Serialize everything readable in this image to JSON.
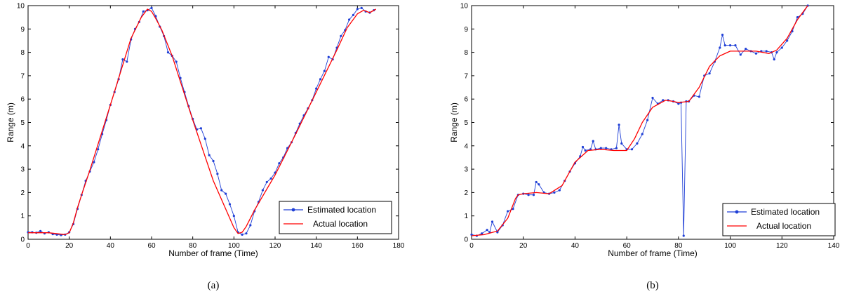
{
  "chart_data": [
    {
      "type": "line",
      "caption": "(a)",
      "xlabel": "Number of frame (Time)",
      "ylabel": "Range (m)",
      "xlim": [
        0,
        180
      ],
      "ylim": [
        0,
        10
      ],
      "xticks": [
        "0",
        "20",
        "40",
        "60",
        "80",
        "100",
        "120",
        "140",
        "160",
        "180"
      ],
      "yticks": [
        "0",
        "1",
        "2",
        "3",
        "4",
        "5",
        "6",
        "7",
        "8",
        "9",
        "10"
      ],
      "grid": false,
      "legend_position": "bottom-right",
      "series": [
        {
          "name": "Estimated location",
          "color": "#1f3fd6",
          "marker": "point",
          "x": [
            0,
            2,
            4,
            6,
            8,
            10,
            12,
            14,
            16,
            18,
            20,
            22,
            24,
            26,
            28,
            30,
            32,
            34,
            36,
            38,
            40,
            42,
            44,
            46,
            48,
            50,
            52,
            54,
            56,
            58,
            60,
            62,
            64,
            66,
            68,
            70,
            72,
            74,
            76,
            78,
            80,
            82,
            84,
            86,
            88,
            90,
            92,
            94,
            96,
            98,
            100,
            102,
            104,
            106,
            108,
            110,
            112,
            114,
            116,
            118,
            120,
            122,
            124,
            126,
            128,
            130,
            132,
            134,
            136,
            138,
            140,
            142,
            144,
            146,
            148,
            150,
            152,
            154,
            156,
            158,
            160,
            162,
            164,
            166,
            168
          ],
          "y": [
            0.3,
            0.3,
            0.28,
            0.35,
            0.25,
            0.3,
            0.22,
            0.2,
            0.18,
            0.2,
            0.3,
            0.65,
            1.3,
            1.9,
            2.5,
            2.9,
            3.3,
            3.85,
            4.5,
            5.1,
            5.75,
            6.3,
            6.85,
            7.7,
            7.6,
            8.55,
            9.0,
            9.3,
            9.75,
            9.8,
            9.9,
            9.55,
            9.1,
            8.7,
            8.0,
            7.85,
            7.6,
            6.9,
            6.3,
            5.7,
            5.15,
            4.7,
            4.75,
            4.3,
            3.6,
            3.35,
            2.8,
            2.1,
            1.95,
            1.5,
            1.0,
            0.3,
            0.2,
            0.25,
            0.6,
            1.2,
            1.6,
            2.1,
            2.45,
            2.6,
            2.85,
            3.25,
            3.5,
            3.9,
            4.15,
            4.55,
            4.95,
            5.3,
            5.6,
            5.95,
            6.45,
            6.85,
            7.2,
            7.8,
            7.7,
            8.2,
            8.7,
            8.95,
            9.4,
            9.6,
            9.85,
            9.9,
            9.75,
            9.7,
            9.8
          ]
        },
        {
          "name": "Actual location",
          "color": "#ff0000",
          "marker": "none",
          "x": [
            0,
            10,
            16,
            18,
            20,
            22,
            24,
            26,
            30,
            40,
            50,
            55,
            58,
            60,
            62,
            65,
            70,
            80,
            90,
            100,
            102,
            104,
            106,
            110,
            120,
            130,
            140,
            150,
            155,
            160,
            163,
            166,
            169
          ],
          "y": [
            0.28,
            0.28,
            0.22,
            0.2,
            0.28,
            0.7,
            1.35,
            1.9,
            2.95,
            5.75,
            8.6,
            9.5,
            9.85,
            9.75,
            9.45,
            8.95,
            7.85,
            5.1,
            2.5,
            0.5,
            0.25,
            0.3,
            0.55,
            1.25,
            2.75,
            4.5,
            6.3,
            8.1,
            9.05,
            9.65,
            9.8,
            9.7,
            9.85
          ]
        }
      ]
    },
    {
      "type": "line",
      "caption": "(b)",
      "xlabel": "Number of frame (Time)",
      "ylabel": "Range (m)",
      "xlim": [
        0,
        140
      ],
      "ylim": [
        0,
        10
      ],
      "xticks": [
        "0",
        "20",
        "40",
        "60",
        "80",
        "100",
        "120",
        "140"
      ],
      "yticks": [
        "0",
        "1",
        "2",
        "3",
        "4",
        "5",
        "6",
        "7",
        "8",
        "9",
        "10"
      ],
      "grid": false,
      "legend_position": "bottom-right",
      "series": [
        {
          "name": "Estimated location",
          "color": "#1f3fd6",
          "marker": "point",
          "x": [
            0,
            2,
            4,
            6,
            7,
            8,
            10,
            12,
            14,
            16,
            18,
            20,
            22,
            24,
            25,
            26,
            28,
            30,
            32,
            34,
            36,
            38,
            40,
            42,
            43,
            44,
            46,
            47,
            48,
            50,
            52,
            54,
            56,
            57,
            58,
            60,
            62,
            64,
            66,
            68,
            70,
            72,
            74,
            76,
            78,
            80,
            81,
            82,
            83,
            84,
            86,
            88,
            90,
            92,
            94,
            96,
            97,
            98,
            100,
            102,
            104,
            106,
            108,
            110,
            112,
            114,
            116,
            117,
            118,
            120,
            122,
            124,
            126,
            128,
            130
          ],
          "y": [
            0.2,
            0.15,
            0.25,
            0.4,
            0.3,
            0.75,
            0.3,
            0.6,
            1.2,
            1.3,
            1.9,
            1.95,
            1.9,
            1.9,
            2.45,
            2.35,
            2.0,
            1.95,
            2.0,
            2.1,
            2.5,
            2.9,
            3.25,
            3.55,
            3.95,
            3.8,
            3.85,
            4.2,
            3.85,
            3.9,
            3.9,
            3.85,
            3.9,
            4.9,
            4.1,
            3.85,
            3.85,
            4.1,
            4.5,
            5.1,
            6.05,
            5.8,
            5.95,
            5.95,
            5.9,
            5.8,
            5.85,
            0.15,
            5.9,
            5.9,
            6.15,
            6.1,
            7.0,
            7.1,
            7.6,
            8.2,
            8.75,
            8.3,
            8.3,
            8.3,
            7.9,
            8.15,
            8.05,
            7.95,
            8.05,
            8.05,
            8.0,
            7.7,
            8.0,
            8.2,
            8.5,
            8.9,
            9.5,
            9.65,
            10.0
          ]
        },
        {
          "name": "Actual location",
          "color": "#ff0000",
          "marker": "none",
          "x": [
            0,
            5,
            10,
            14,
            17,
            18,
            20,
            25,
            30,
            35,
            40,
            45,
            50,
            55,
            60,
            63,
            66,
            70,
            75,
            78,
            80,
            84,
            88,
            92,
            96,
            100,
            105,
            110,
            115,
            118,
            122,
            126,
            130
          ],
          "y": [
            0.15,
            0.2,
            0.35,
            0.9,
            1.75,
            1.9,
            1.95,
            2.0,
            1.95,
            2.3,
            3.3,
            3.8,
            3.85,
            3.8,
            3.8,
            4.3,
            5.0,
            5.65,
            5.95,
            5.9,
            5.85,
            5.9,
            6.5,
            7.4,
            7.85,
            8.05,
            8.05,
            8.05,
            7.95,
            8.1,
            8.6,
            9.4,
            10.0
          ]
        }
      ]
    }
  ]
}
